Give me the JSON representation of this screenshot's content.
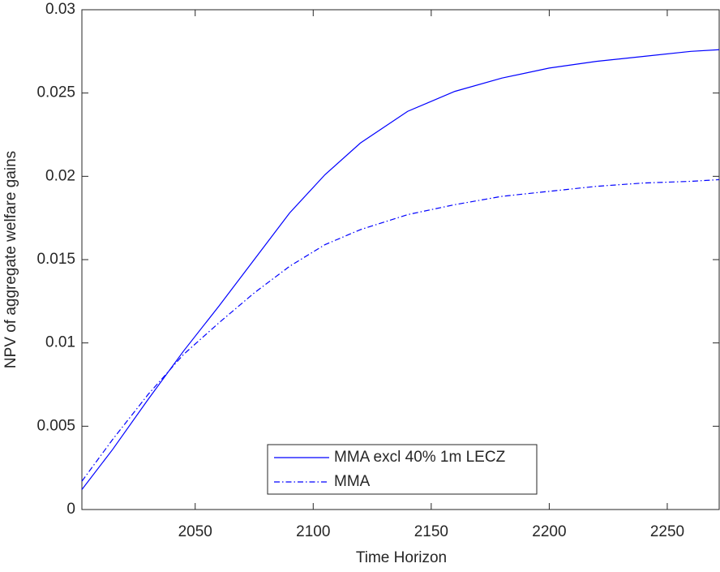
{
  "chart_data": {
    "type": "line",
    "xlabel": "Time Horizon",
    "ylabel": "NPV of aggregate welfare gains",
    "x": [
      2002,
      2015,
      2030,
      2045,
      2060,
      2075,
      2090,
      2105,
      2120,
      2140,
      2160,
      2180,
      2200,
      2220,
      2240,
      2260,
      2272
    ],
    "series": [
      {
        "name": "MMA excl 40% 1m LECZ",
        "color": "#0000ff",
        "dash": "solid",
        "values": [
          0.0012,
          0.0036,
          0.0066,
          0.0095,
          0.0122,
          0.015,
          0.0178,
          0.0201,
          0.022,
          0.0239,
          0.0251,
          0.0259,
          0.0265,
          0.0269,
          0.0272,
          0.0275,
          0.0276
        ]
      },
      {
        "name": "MMA",
        "color": "#0000ff",
        "dash": "dashdot",
        "values": [
          0.0017,
          0.0042,
          0.0069,
          0.0093,
          0.0112,
          0.013,
          0.0146,
          0.0159,
          0.0168,
          0.0177,
          0.0183,
          0.0188,
          0.0191,
          0.0194,
          0.0196,
          0.0197,
          0.0198
        ]
      }
    ],
    "xlim": [
      2002,
      2272
    ],
    "ylim": [
      0,
      0.03
    ],
    "xticks": [
      2050,
      2100,
      2150,
      2200,
      2250
    ],
    "yticks": [
      0,
      0.005,
      0.01,
      0.015,
      0.02,
      0.025,
      0.03
    ],
    "legend": "bottom"
  }
}
